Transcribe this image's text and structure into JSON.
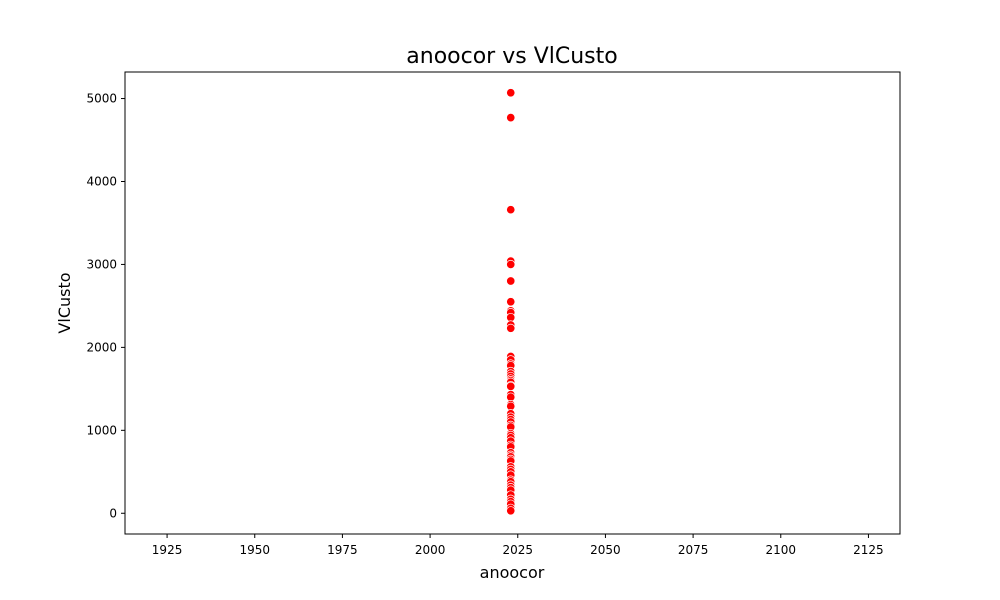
{
  "chart_data": {
    "type": "scatter",
    "title": "anoocor vs VlCusto",
    "xlabel": "anoocor",
    "ylabel": "VlCusto",
    "xlim": [
      1913,
      2134
    ],
    "ylim": [
      -250,
      5320
    ],
    "xticks": [
      1925,
      1950,
      1975,
      2000,
      2025,
      2050,
      2075,
      2100,
      2125
    ],
    "yticks": [
      0,
      1000,
      2000,
      3000,
      4000,
      5000
    ],
    "grid": false,
    "legend": "none",
    "point_color": "#ff0000",
    "point_edge_color": "#ffffff",
    "series": [
      {
        "x": [
          2023,
          2023,
          2023,
          2023,
          2023,
          2023,
          2023,
          2023,
          2023,
          2023,
          2023,
          2023,
          2023,
          2023,
          2023,
          2023,
          2023,
          2023,
          2023,
          2023,
          2023,
          2023,
          2023,
          2023,
          2023,
          2023,
          2023,
          2023,
          2023,
          2023,
          2023,
          2023,
          2023,
          2023,
          2023,
          2023,
          2023,
          2023,
          2023,
          2023,
          2023,
          2023,
          2023,
          2023,
          2023,
          2023,
          2023,
          2023,
          2023,
          2023,
          2023,
          2023,
          2023,
          2023,
          2023,
          2023,
          2023,
          2023,
          2023,
          2023
        ],
        "y": [
          5070,
          4770,
          3660,
          3040,
          3000,
          2800,
          2550,
          2440,
          2420,
          2360,
          2270,
          2230,
          1890,
          1850,
          1800,
          1780,
          1710,
          1680,
          1650,
          1620,
          1600,
          1580,
          1540,
          1530,
          1430,
          1400,
          1310,
          1290,
          1200,
          1160,
          1130,
          1100,
          1060,
          1040,
          960,
          940,
          910,
          870,
          820,
          800,
          730,
          700,
          680,
          650,
          630,
          560,
          530,
          500,
          460,
          400,
          380,
          340,
          310,
          280,
          220,
          170,
          140,
          110,
          60,
          30
        ]
      }
    ]
  }
}
